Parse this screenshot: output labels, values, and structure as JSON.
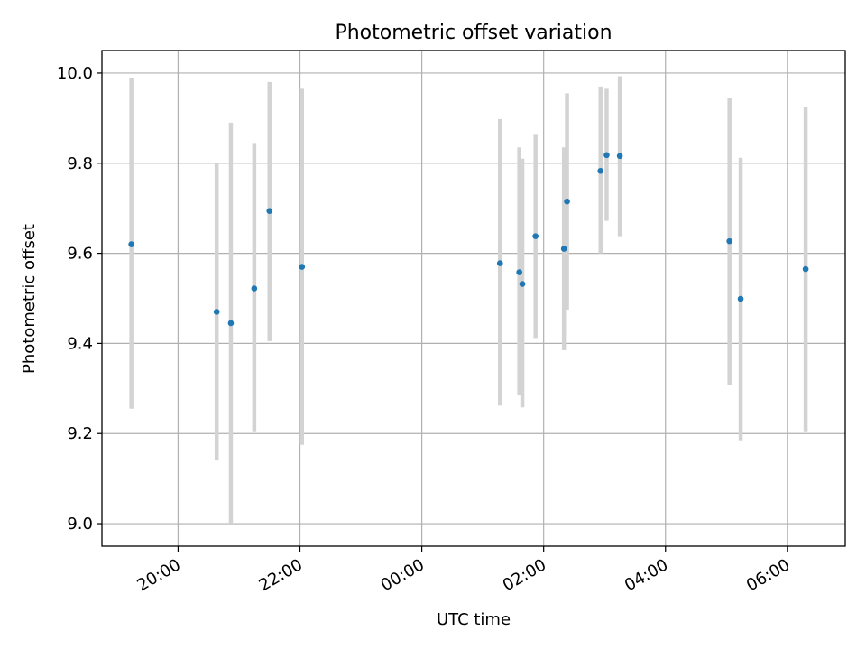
{
  "chart_data": {
    "type": "scatter",
    "title": "Photometric offset variation",
    "xlabel": "UTC time",
    "ylabel": "Photometric offset",
    "x_ticks": [
      "20:00",
      "22:00",
      "00:00",
      "02:00",
      "04:00",
      "06:00"
    ],
    "y_ticks": [
      "9.0",
      "9.2",
      "9.4",
      "9.6",
      "9.8",
      "10.0"
    ],
    "ylim": [
      8.95,
      10.05
    ],
    "xlim": [
      "18:45",
      "06:57"
    ],
    "grid": true,
    "colors": {
      "point": "#1f77b4",
      "errorbar": "#d3d3d3",
      "grid": "#b0b0b0"
    },
    "points": [
      {
        "time": "19:14",
        "value": 9.62,
        "low": 9.255,
        "high": 9.99
      },
      {
        "time": "20:38",
        "value": 9.47,
        "low": 9.14,
        "high": 9.8
      },
      {
        "time": "20:52",
        "value": 9.445,
        "low": 9.0,
        "high": 9.89
      },
      {
        "time": "21:15",
        "value": 9.522,
        "low": 9.205,
        "high": 9.845
      },
      {
        "time": "21:30",
        "value": 9.694,
        "low": 9.405,
        "high": 9.98
      },
      {
        "time": "22:02",
        "value": 9.57,
        "low": 9.175,
        "high": 9.965
      },
      {
        "time": "01:17",
        "value": 9.578,
        "low": 9.262,
        "high": 9.898
      },
      {
        "time": "01:36",
        "value": 9.558,
        "low": 9.285,
        "high": 9.835
      },
      {
        "time": "01:39",
        "value": 9.532,
        "low": 9.258,
        "high": 9.81
      },
      {
        "time": "01:52",
        "value": 9.638,
        "low": 9.412,
        "high": 9.865
      },
      {
        "time": "02:20",
        "value": 9.61,
        "low": 9.385,
        "high": 9.835
      },
      {
        "time": "02:23",
        "value": 9.715,
        "low": 9.475,
        "high": 9.955
      },
      {
        "time": "02:56",
        "value": 9.783,
        "low": 9.6,
        "high": 9.97
      },
      {
        "time": "03:02",
        "value": 9.818,
        "low": 9.672,
        "high": 9.965
      },
      {
        "time": "03:15",
        "value": 9.816,
        "low": 9.638,
        "high": 9.993
      },
      {
        "time": "05:03",
        "value": 9.627,
        "low": 9.308,
        "high": 9.945
      },
      {
        "time": "05:14",
        "value": 9.499,
        "low": 9.185,
        "high": 9.812
      },
      {
        "time": "06:18",
        "value": 9.565,
        "low": 9.205,
        "high": 9.925
      }
    ]
  }
}
